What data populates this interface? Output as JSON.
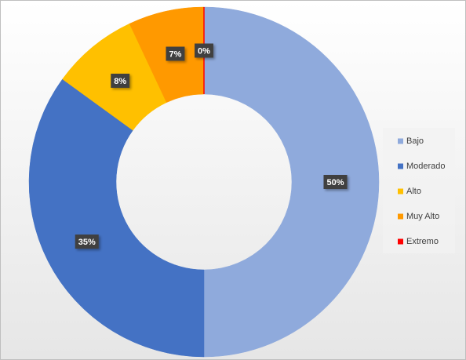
{
  "chart_data": {
    "type": "donut",
    "categories": [
      "Bajo",
      "Moderado",
      "Alto",
      "Muy Alto",
      "Extremo"
    ],
    "values": [
      50,
      35,
      8,
      7,
      0
    ],
    "value_labels": [
      "50%",
      "35%",
      "8%",
      "7%",
      "0%"
    ],
    "colors": [
      "#8faadc",
      "#4472c4",
      "#ffc000",
      "#ff9900",
      "#ff0000"
    ],
    "legend": "right"
  }
}
